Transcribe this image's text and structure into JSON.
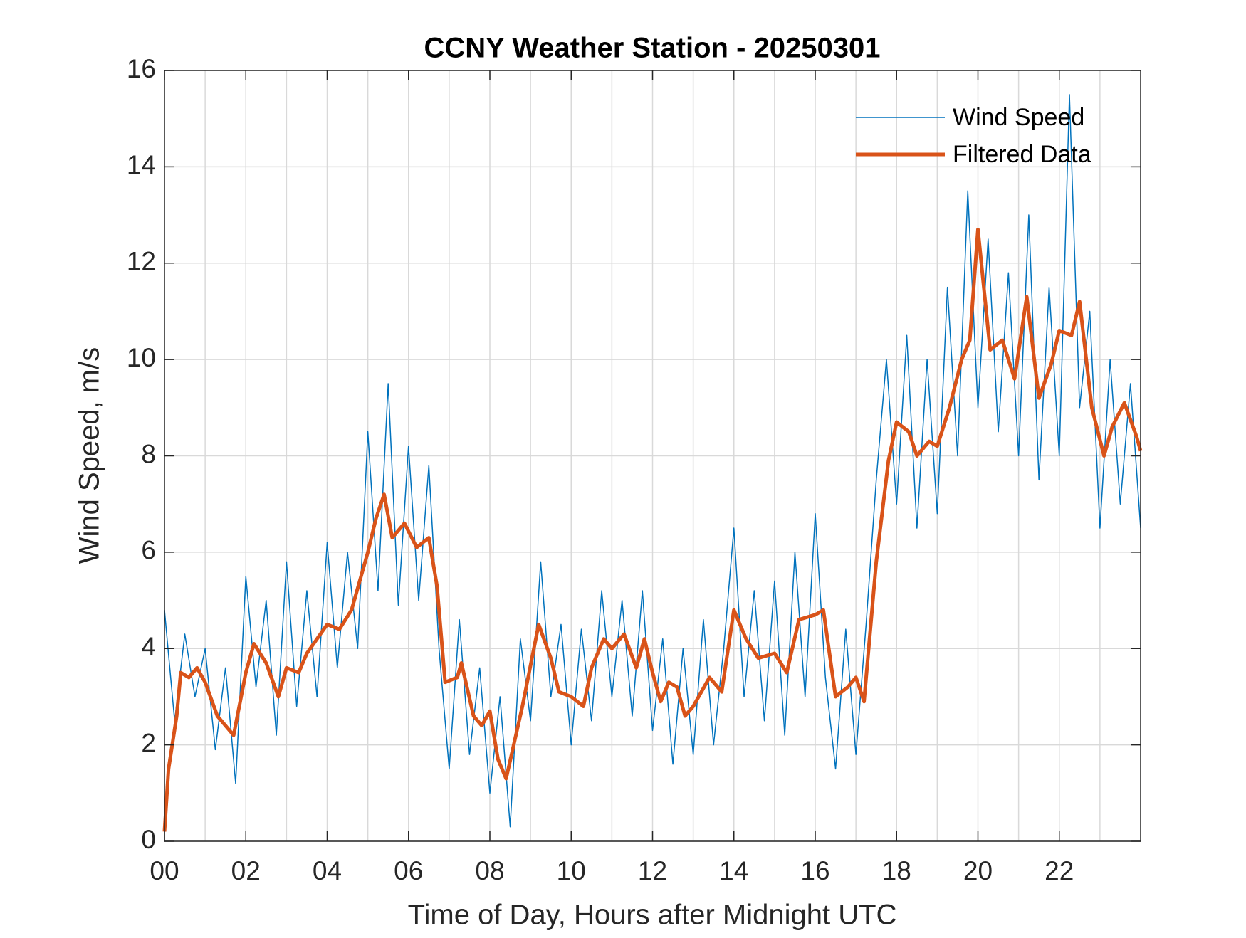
{
  "chart_data": {
    "type": "line",
    "title": "CCNY Weather Station - 20250301",
    "x_label": "Time of Day, Hours after Midnight UTC",
    "y_label": "Wind Speed, m/s",
    "xlim": [
      0,
      24
    ],
    "xticks": [
      {
        "value": 0,
        "label": "00"
      },
      {
        "value": 2,
        "label": "02"
      },
      {
        "value": 4,
        "label": "04"
      },
      {
        "value": 6,
        "label": "06"
      },
      {
        "value": 8,
        "label": "08"
      },
      10,
      12,
      14,
      16,
      18,
      20,
      22
    ],
    "x_minor_ticks": [
      1,
      3,
      5,
      7,
      9,
      11,
      13,
      15,
      17,
      19,
      21,
      23
    ],
    "ylim": [
      0,
      16
    ],
    "yticks": [
      0,
      2,
      4,
      6,
      8,
      10,
      12,
      14,
      16
    ],
    "grid": true,
    "legend": "northeast",
    "series": [
      {
        "name": "Wind Speed",
        "color": "#0072bd",
        "width": 1.5,
        "x": [
          0,
          0.25,
          0.5,
          0.75,
          1,
          1.25,
          1.5,
          1.75,
          2,
          2.25,
          2.5,
          2.75,
          3,
          3.25,
          3.5,
          3.75,
          4,
          4.25,
          4.5,
          4.75,
          5,
          5.25,
          5.5,
          5.75,
          6,
          6.25,
          6.5,
          6.75,
          7,
          7.25,
          7.5,
          7.75,
          8,
          8.25,
          8.5,
          8.75,
          9,
          9.25,
          9.5,
          9.75,
          10,
          10.25,
          10.5,
          10.75,
          11,
          11.25,
          11.5,
          11.75,
          12,
          12.25,
          12.5,
          12.75,
          13,
          13.25,
          13.5,
          13.75,
          14,
          14.25,
          14.5,
          14.75,
          15,
          15.25,
          15.5,
          15.75,
          16,
          16.25,
          16.5,
          16.75,
          17,
          17.25,
          17.5,
          17.75,
          18,
          18.25,
          18.5,
          18.75,
          19,
          19.25,
          19.5,
          19.75,
          20,
          20.25,
          20.5,
          20.75,
          21,
          21.25,
          21.5,
          21.75,
          22,
          22.25,
          22.5,
          22.75,
          23,
          23.25,
          23.5,
          23.75,
          24
        ],
        "values": [
          4.8,
          2.5,
          4.3,
          3.0,
          4.0,
          1.9,
          3.6,
          1.2,
          5.5,
          3.2,
          5.0,
          2.2,
          5.8,
          2.8,
          5.2,
          3.0,
          6.2,
          3.6,
          6.0,
          4.0,
          8.5,
          5.2,
          9.5,
          4.9,
          8.2,
          5.0,
          7.8,
          4.0,
          1.5,
          4.6,
          1.8,
          3.6,
          1.0,
          3.0,
          0.3,
          4.2,
          2.5,
          5.8,
          3.0,
          4.5,
          2.0,
          4.4,
          2.5,
          5.2,
          3.0,
          5.0,
          2.6,
          5.2,
          2.3,
          4.2,
          1.6,
          4.0,
          1.8,
          4.6,
          2.0,
          4.0,
          6.5,
          3.0,
          5.2,
          2.5,
          5.4,
          2.2,
          6.0,
          3.0,
          6.8,
          3.4,
          1.5,
          4.4,
          1.8,
          4.5,
          7.5,
          10.0,
          7.0,
          10.5,
          6.5,
          10.0,
          6.8,
          11.5,
          8.0,
          13.5,
          9.0,
          12.5,
          8.5,
          11.8,
          8.0,
          13.0,
          7.5,
          11.5,
          8.0,
          15.5,
          9.0,
          11.0,
          6.5,
          10.0,
          7.0,
          9.5,
          6.5
        ]
      },
      {
        "name": "Filtered Data",
        "color": "#d95319",
        "width": 5,
        "x": [
          0,
          0.1,
          0.3,
          0.4,
          0.6,
          0.8,
          1.0,
          1.3,
          1.7,
          2.0,
          2.2,
          2.5,
          2.8,
          3.0,
          3.3,
          3.5,
          4.0,
          4.3,
          4.6,
          5.0,
          5.2,
          5.4,
          5.6,
          5.9,
          6.2,
          6.5,
          6.7,
          6.9,
          7.2,
          7.3,
          7.6,
          7.8,
          8.0,
          8.2,
          8.4,
          8.8,
          9.2,
          9.5,
          9.7,
          10.0,
          10.3,
          10.5,
          10.8,
          11.0,
          11.3,
          11.6,
          11.8,
          12.0,
          12.2,
          12.4,
          12.6,
          12.8,
          13.0,
          13.4,
          13.7,
          14.0,
          14.3,
          14.6,
          15.0,
          15.3,
          15.6,
          16.0,
          16.2,
          16.5,
          16.8,
          17.0,
          17.2,
          17.5,
          17.8,
          18.0,
          18.3,
          18.5,
          18.8,
          19.0,
          19.3,
          19.6,
          19.8,
          20.0,
          20.3,
          20.6,
          20.9,
          21.2,
          21.5,
          21.8,
          22.0,
          22.3,
          22.5,
          22.8,
          23.1,
          23.3,
          23.6,
          23.9,
          24.0
        ],
        "values": [
          0.2,
          1.5,
          2.6,
          3.5,
          3.4,
          3.6,
          3.3,
          2.6,
          2.2,
          3.5,
          4.1,
          3.7,
          3.0,
          3.6,
          3.5,
          3.9,
          4.5,
          4.4,
          4.8,
          6.0,
          6.7,
          7.2,
          6.3,
          6.6,
          6.1,
          6.3,
          5.3,
          3.3,
          3.4,
          3.7,
          2.6,
          2.4,
          2.7,
          1.7,
          1.3,
          2.8,
          4.5,
          3.8,
          3.1,
          3.0,
          2.8,
          3.6,
          4.2,
          4.0,
          4.3,
          3.6,
          4.2,
          3.5,
          2.9,
          3.3,
          3.2,
          2.6,
          2.8,
          3.4,
          3.1,
          4.8,
          4.2,
          3.8,
          3.9,
          3.5,
          4.6,
          4.7,
          4.8,
          3.0,
          3.2,
          3.4,
          2.9,
          5.8,
          7.9,
          8.7,
          8.5,
          8.0,
          8.3,
          8.2,
          9.0,
          10.0,
          10.4,
          12.7,
          10.2,
          10.4,
          9.6,
          11.3,
          9.2,
          9.9,
          10.6,
          10.5,
          11.2,
          9.0,
          8.0,
          8.6,
          9.1,
          8.4,
          8.1
        ]
      }
    ]
  }
}
